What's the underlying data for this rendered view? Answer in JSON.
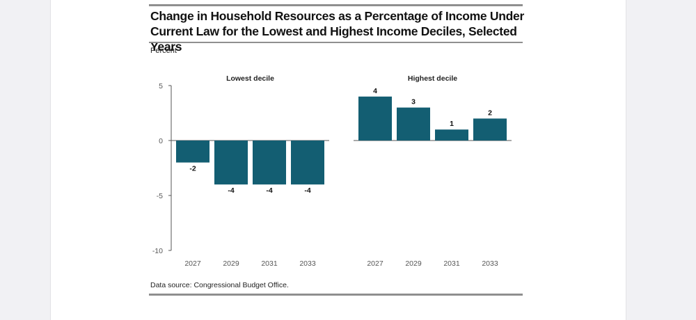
{
  "title": "Change in Household Resources as a Percentage of Income Under Current Law for the Lowest and Highest Income Deciles, Selected Years",
  "y_unit_label": "Percent",
  "source": "Data source: Congressional Budget Office.",
  "colors": {
    "bar": "#135e72",
    "axis": "#555555",
    "rule": "#8f8f8f"
  },
  "chart_data": {
    "type": "bar",
    "ylim": [
      -10,
      5
    ],
    "yticks": [
      5,
      0,
      -5,
      -10
    ],
    "grid": false,
    "categories": [
      "2027",
      "2029",
      "2031",
      "2033"
    ],
    "panels": [
      {
        "name": "Lowest decile",
        "values": [
          -2,
          -4,
          -4,
          -4
        ]
      },
      {
        "name": "Highest decile",
        "values": [
          4,
          3,
          1,
          2
        ]
      }
    ]
  }
}
